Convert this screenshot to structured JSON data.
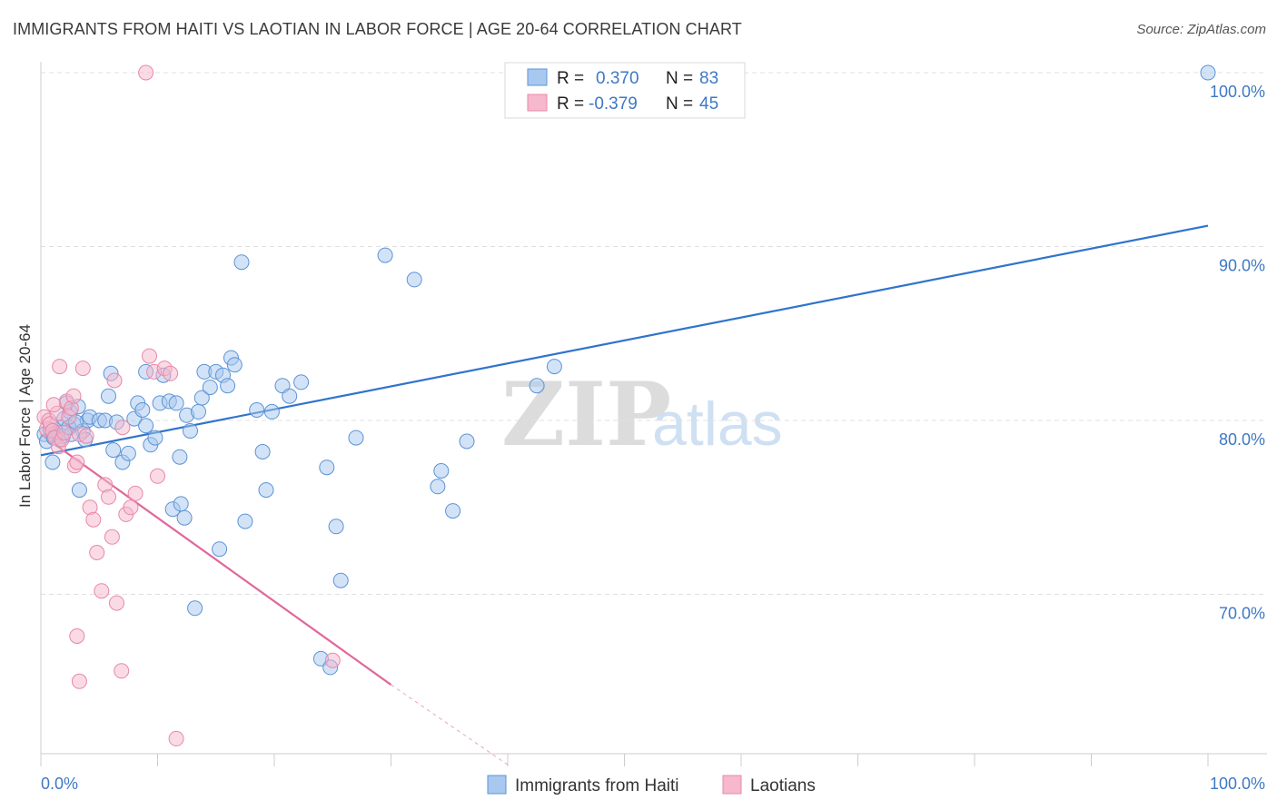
{
  "header": {
    "title": "IMMIGRANTS FROM HAITI VS LAOTIAN IN LABOR FORCE | AGE 20-64 CORRELATION CHART",
    "source": "Source: ZipAtlas.com"
  },
  "watermark": {
    "zip": "ZIP",
    "atlas": "atlas"
  },
  "legend": {
    "rows": [
      {
        "r_label": "R =",
        "r_value": "0.370",
        "n_label": "N =",
        "n_value": "83"
      },
      {
        "r_label": "R =",
        "r_value": "-0.379",
        "n_label": "N =",
        "n_value": "45"
      }
    ]
  },
  "colors": {
    "blue_fill": "#a8c8f0",
    "blue_stroke": "#5b93d6",
    "blue_line": "#2f74cc",
    "pink_fill": "#f6b8cc",
    "pink_stroke": "#e887a8",
    "pink_line": "#e0689a",
    "tick_text": "#3e78c4",
    "grid": "#e0e0e0"
  },
  "chart_data": {
    "type": "scatter",
    "title": "IMMIGRANTS FROM HAITI VS LAOTIAN IN LABOR FORCE | AGE 20-64 CORRELATION CHART",
    "xlabel": "",
    "ylabel": "In Labor Force | Age 20-64",
    "xlim": [
      0,
      100
    ],
    "ylim": [
      60.5,
      101.5
    ],
    "x_tick_labels": [
      "0.0%",
      "100.0%"
    ],
    "y_ticks": [
      70,
      80,
      90,
      100
    ],
    "y_tick_labels": [
      "70.0%",
      "80.0%",
      "90.0%",
      "100.0%"
    ],
    "grid": true,
    "legend_position": "top-center",
    "series": [
      {
        "name": "Immigrants from Haiti",
        "r": 0.37,
        "n": 83,
        "trend": {
          "x": [
            0,
            100
          ],
          "y": [
            78.0,
            91.2
          ]
        },
        "points": [
          [
            0.3,
            79.2
          ],
          [
            0.5,
            78.8
          ],
          [
            0.8,
            79.5
          ],
          [
            1.0,
            77.6
          ],
          [
            1.2,
            79.1
          ],
          [
            1.4,
            79.3
          ],
          [
            1.6,
            78.9
          ],
          [
            1.8,
            79.6
          ],
          [
            2.0,
            80.1
          ],
          [
            2.2,
            81.0
          ],
          [
            2.5,
            80.5
          ],
          [
            2.8,
            79.8
          ],
          [
            3.2,
            80.8
          ],
          [
            3.6,
            79.4
          ],
          [
            4.0,
            80.0
          ],
          [
            1.9,
            79.1
          ],
          [
            1.1,
            79.0
          ],
          [
            2.6,
            79.2
          ],
          [
            3.3,
            76.0
          ],
          [
            3.8,
            78.9
          ],
          [
            4.2,
            80.2
          ],
          [
            5.0,
            80.0
          ],
          [
            5.5,
            80.0
          ],
          [
            5.8,
            81.4
          ],
          [
            6.0,
            82.7
          ],
          [
            6.5,
            79.9
          ],
          [
            7.0,
            77.6
          ],
          [
            7.5,
            78.1
          ],
          [
            8.0,
            80.1
          ],
          [
            8.3,
            81.0
          ],
          [
            8.7,
            80.6
          ],
          [
            9.0,
            82.8
          ],
          [
            9.4,
            78.6
          ],
          [
            9.8,
            79.0
          ],
          [
            10.2,
            81.0
          ],
          [
            10.5,
            82.6
          ],
          [
            11.0,
            81.1
          ],
          [
            11.3,
            74.9
          ],
          [
            11.6,
            81.0
          ],
          [
            12.0,
            75.2
          ],
          [
            12.3,
            74.4
          ],
          [
            12.5,
            80.3
          ],
          [
            12.8,
            79.4
          ],
          [
            13.2,
            69.2
          ],
          [
            13.5,
            80.5
          ],
          [
            13.8,
            81.3
          ],
          [
            14.0,
            82.8
          ],
          [
            14.5,
            81.9
          ],
          [
            15.0,
            82.8
          ],
          [
            15.3,
            72.6
          ],
          [
            15.6,
            82.6
          ],
          [
            16.0,
            82.0
          ],
          [
            16.3,
            83.6
          ],
          [
            16.6,
            83.2
          ],
          [
            17.2,
            89.1
          ],
          [
            17.5,
            74.2
          ],
          [
            18.5,
            80.6
          ],
          [
            19.0,
            78.2
          ],
          [
            19.3,
            76.0
          ],
          [
            19.8,
            80.5
          ],
          [
            20.7,
            82.0
          ],
          [
            21.3,
            81.4
          ],
          [
            22.3,
            82.2
          ],
          [
            24.0,
            66.3
          ],
          [
            24.5,
            77.3
          ],
          [
            24.8,
            65.8
          ],
          [
            25.3,
            73.9
          ],
          [
            25.7,
            70.8
          ],
          [
            27.0,
            79.0
          ],
          [
            29.5,
            89.5
          ],
          [
            32.0,
            88.1
          ],
          [
            34.0,
            76.2
          ],
          [
            34.3,
            77.1
          ],
          [
            35.3,
            74.8
          ],
          [
            36.5,
            78.8
          ],
          [
            42.5,
            82.0
          ],
          [
            44.0,
            83.1
          ],
          [
            100.0,
            100.0
          ],
          [
            2.4,
            79.6
          ],
          [
            3.0,
            79.9
          ],
          [
            6.2,
            78.3
          ],
          [
            11.9,
            77.9
          ],
          [
            9.0,
            79.7
          ]
        ]
      },
      {
        "name": "Laotians",
        "r": -0.379,
        "n": 45,
        "trend": {
          "x": [
            0,
            30
          ],
          "y": [
            79.2,
            64.8
          ]
        },
        "trend_dashed": {
          "x": [
            30,
            40
          ],
          "y": [
            64.8,
            60.2
          ]
        },
        "points": [
          [
            0.3,
            80.2
          ],
          [
            0.5,
            79.5
          ],
          [
            0.7,
            80.0
          ],
          [
            0.8,
            79.8
          ],
          [
            1.0,
            79.4
          ],
          [
            1.2,
            79.0
          ],
          [
            1.4,
            80.4
          ],
          [
            1.5,
            78.5
          ],
          [
            1.8,
            78.9
          ],
          [
            2.0,
            79.3
          ],
          [
            2.2,
            81.1
          ],
          [
            2.4,
            80.2
          ],
          [
            2.6,
            80.7
          ],
          [
            2.9,
            77.4
          ],
          [
            3.1,
            77.6
          ],
          [
            3.3,
            79.2
          ],
          [
            3.6,
            83.0
          ],
          [
            3.9,
            79.1
          ],
          [
            4.2,
            75.0
          ],
          [
            4.5,
            74.3
          ],
          [
            4.8,
            72.4
          ],
          [
            5.2,
            70.2
          ],
          [
            5.5,
            76.3
          ],
          [
            5.8,
            75.6
          ],
          [
            6.1,
            73.3
          ],
          [
            6.5,
            69.5
          ],
          [
            6.9,
            65.6
          ],
          [
            7.3,
            74.6
          ],
          [
            7.7,
            75.0
          ],
          [
            8.1,
            75.8
          ],
          [
            1.1,
            80.9
          ],
          [
            1.6,
            83.1
          ],
          [
            2.8,
            81.4
          ],
          [
            6.3,
            82.3
          ],
          [
            7.0,
            79.6
          ],
          [
            9.0,
            100.0
          ],
          [
            9.3,
            83.7
          ],
          [
            9.7,
            82.8
          ],
          [
            10.0,
            76.8
          ],
          [
            10.6,
            83.0
          ],
          [
            11.1,
            82.7
          ],
          [
            11.6,
            61.7
          ],
          [
            3.1,
            67.6
          ],
          [
            3.3,
            65.0
          ],
          [
            25.0,
            66.2
          ]
        ]
      }
    ]
  },
  "bottom_legend": {
    "items": [
      "Immigrants from Haiti",
      "Laotians"
    ]
  }
}
